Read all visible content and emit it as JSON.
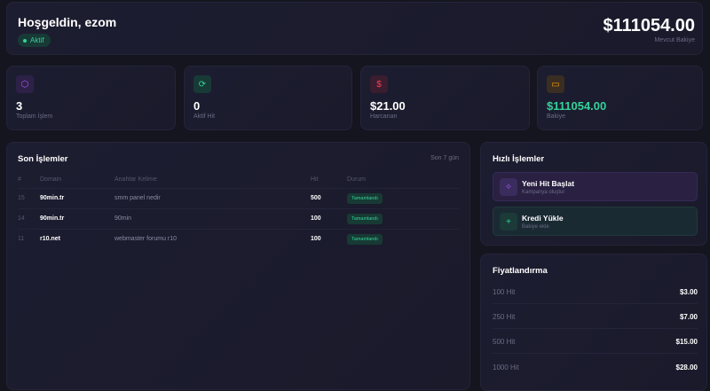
{
  "header": {
    "greeting": "Hoşgeldin, ezom",
    "status": "Aktif",
    "balance": "$111054.00",
    "balance_label": "Mevcut Bakiye"
  },
  "stats": [
    {
      "value": "3",
      "label": "Toplam İşlem",
      "icon": "cube-icon",
      "color": "#a855f7"
    },
    {
      "value": "0",
      "label": "Aktif Hit",
      "icon": "refresh-icon",
      "color": "#34d399"
    },
    {
      "value": "$21.00",
      "label": "Harcanan",
      "icon": "dollar-icon",
      "color": "#f43f5e"
    },
    {
      "value": "$111054.00",
      "label": "Bakiye",
      "icon": "credit-card-icon",
      "color": "#f59e0b"
    }
  ],
  "recent": {
    "title": "Son İşlemler",
    "period": "Son 7 gün",
    "columns": [
      "#",
      "Domain",
      "Anahtar Kelime",
      "Hit",
      "Durum"
    ],
    "rows": [
      [
        "15",
        "90min.tr",
        "smm panel nedir",
        "500",
        "Tamamlandı"
      ],
      [
        "14",
        "90min.tr",
        "90min",
        "100",
        "Tamamlandı"
      ],
      [
        "11",
        "r10.net",
        "webmaster forumu r10",
        "100",
        "Tamamlandı"
      ]
    ]
  },
  "quick": {
    "title": "Hızlı İşlemler",
    "actions": [
      {
        "title": "Yeni Hit Başlat",
        "subtitle": "Kampanya oluştur",
        "icon": "sparkle-icon"
      },
      {
        "title": "Kredi Yükle",
        "subtitle": "Bakiye ekle",
        "icon": "plus-icon"
      }
    ]
  },
  "pricing": {
    "title": "Fiyatlandırma",
    "items": [
      {
        "label": "100 Hit",
        "price": "$3.00"
      },
      {
        "label": "250 Hit",
        "price": "$7.00"
      },
      {
        "label": "500 Hit",
        "price": "$15.00"
      },
      {
        "label": "1000 Hit",
        "price": "$28.00"
      }
    ]
  }
}
